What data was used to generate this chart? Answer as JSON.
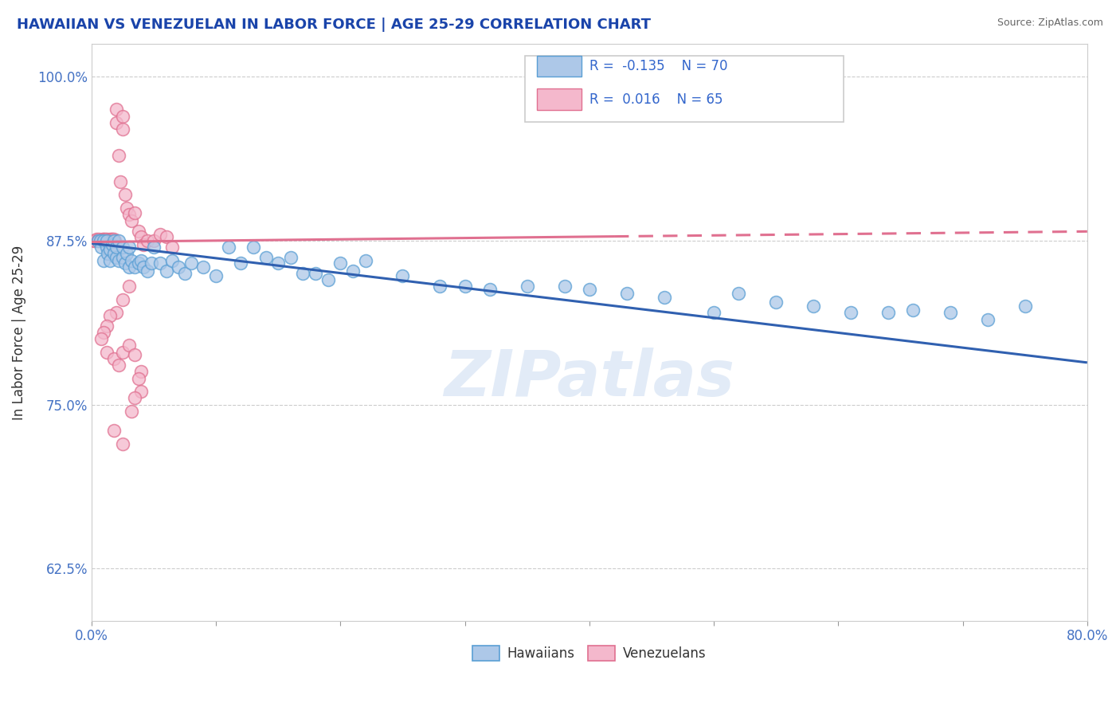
{
  "title": "HAWAIIAN VS VENEZUELAN IN LABOR FORCE | AGE 25-29 CORRELATION CHART",
  "source": "Source: ZipAtlas.com",
  "ylabel": "In Labor Force | Age 25-29",
  "xlim": [
    0.0,
    0.8
  ],
  "ylim": [
    0.585,
    1.025
  ],
  "yticks": [
    0.625,
    0.75,
    0.875,
    1.0
  ],
  "ytick_labels": [
    "62.5%",
    "75.0%",
    "87.5%",
    "100.0%"
  ],
  "xticks": [
    0.0,
    0.1,
    0.2,
    0.3,
    0.4,
    0.5,
    0.6,
    0.7,
    0.8
  ],
  "legend_R_blue": "-0.135",
  "legend_N_blue": "70",
  "legend_R_pink": "0.016",
  "legend_N_pink": "65",
  "legend_label_blue": "Hawaiians",
  "legend_label_pink": "Venezuelans",
  "blue_color": "#adc8e8",
  "blue_edge": "#5a9fd4",
  "blue_line": "#3060b0",
  "pink_color": "#f4b8cc",
  "pink_edge": "#e07090",
  "pink_line": "#e07090",
  "watermark": "ZIPatlas",
  "background": "#ffffff",
  "grid_color": "#cccccc",
  "title_color": "#1a44aa",
  "source_color": "#666666",
  "blue_trend_x0": 0.0,
  "blue_trend_y0": 0.873,
  "blue_trend_x1": 0.8,
  "blue_trend_y1": 0.782,
  "pink_trend_x0": 0.0,
  "pink_trend_y0": 0.874,
  "pink_trend_x1": 0.8,
  "pink_trend_y1": 0.882,
  "hawaiians_x": [
    0.005,
    0.007,
    0.008,
    0.01,
    0.01,
    0.012,
    0.012,
    0.013,
    0.015,
    0.015,
    0.017,
    0.018,
    0.018,
    0.02,
    0.02,
    0.022,
    0.022,
    0.025,
    0.025,
    0.027,
    0.028,
    0.03,
    0.03,
    0.032,
    0.035,
    0.038,
    0.04,
    0.042,
    0.045,
    0.048,
    0.05,
    0.055,
    0.06,
    0.065,
    0.07,
    0.075,
    0.08,
    0.09,
    0.1,
    0.11,
    0.12,
    0.13,
    0.14,
    0.15,
    0.16,
    0.17,
    0.18,
    0.19,
    0.2,
    0.21,
    0.22,
    0.25,
    0.28,
    0.3,
    0.32,
    0.35,
    0.38,
    0.4,
    0.43,
    0.46,
    0.5,
    0.52,
    0.55,
    0.58,
    0.61,
    0.64,
    0.66,
    0.69,
    0.72,
    0.75
  ],
  "hawaiians_y": [
    0.875,
    0.875,
    0.87,
    0.86,
    0.875,
    0.87,
    0.875,
    0.865,
    0.868,
    0.86,
    0.872,
    0.865,
    0.875,
    0.862,
    0.87,
    0.86,
    0.875,
    0.862,
    0.87,
    0.858,
    0.865,
    0.855,
    0.87,
    0.86,
    0.855,
    0.858,
    0.86,
    0.855,
    0.852,
    0.858,
    0.87,
    0.858,
    0.852,
    0.86,
    0.855,
    0.85,
    0.858,
    0.855,
    0.848,
    0.87,
    0.858,
    0.87,
    0.862,
    0.858,
    0.862,
    0.85,
    0.85,
    0.845,
    0.858,
    0.852,
    0.86,
    0.848,
    0.84,
    0.84,
    0.838,
    0.84,
    0.84,
    0.838,
    0.835,
    0.832,
    0.82,
    0.835,
    0.828,
    0.825,
    0.82,
    0.82,
    0.822,
    0.82,
    0.815,
    0.825
  ],
  "venezuelans_x": [
    0.002,
    0.003,
    0.004,
    0.005,
    0.005,
    0.006,
    0.007,
    0.008,
    0.009,
    0.01,
    0.01,
    0.01,
    0.011,
    0.012,
    0.012,
    0.013,
    0.014,
    0.015,
    0.015,
    0.015,
    0.016,
    0.016,
    0.017,
    0.018,
    0.018,
    0.019,
    0.02,
    0.02,
    0.022,
    0.023,
    0.025,
    0.025,
    0.027,
    0.028,
    0.03,
    0.032,
    0.035,
    0.038,
    0.04,
    0.042,
    0.045,
    0.05,
    0.055,
    0.06,
    0.065,
    0.03,
    0.025,
    0.02,
    0.015,
    0.012,
    0.01,
    0.008,
    0.012,
    0.018,
    0.022,
    0.025,
    0.03,
    0.035,
    0.04,
    0.038,
    0.04,
    0.035,
    0.032,
    0.018,
    0.025
  ],
  "venezuelans_y": [
    0.875,
    0.875,
    0.876,
    0.875,
    0.875,
    0.876,
    0.875,
    0.875,
    0.876,
    0.875,
    0.876,
    0.875,
    0.876,
    0.875,
    0.876,
    0.875,
    0.875,
    0.875,
    0.876,
    0.875,
    0.876,
    0.875,
    0.876,
    0.875,
    0.876,
    0.875,
    0.975,
    0.965,
    0.94,
    0.92,
    0.97,
    0.96,
    0.91,
    0.9,
    0.895,
    0.89,
    0.896,
    0.882,
    0.878,
    0.872,
    0.875,
    0.875,
    0.88,
    0.878,
    0.87,
    0.84,
    0.83,
    0.82,
    0.818,
    0.81,
    0.805,
    0.8,
    0.79,
    0.785,
    0.78,
    0.79,
    0.795,
    0.788,
    0.775,
    0.77,
    0.76,
    0.755,
    0.745,
    0.73,
    0.72
  ]
}
